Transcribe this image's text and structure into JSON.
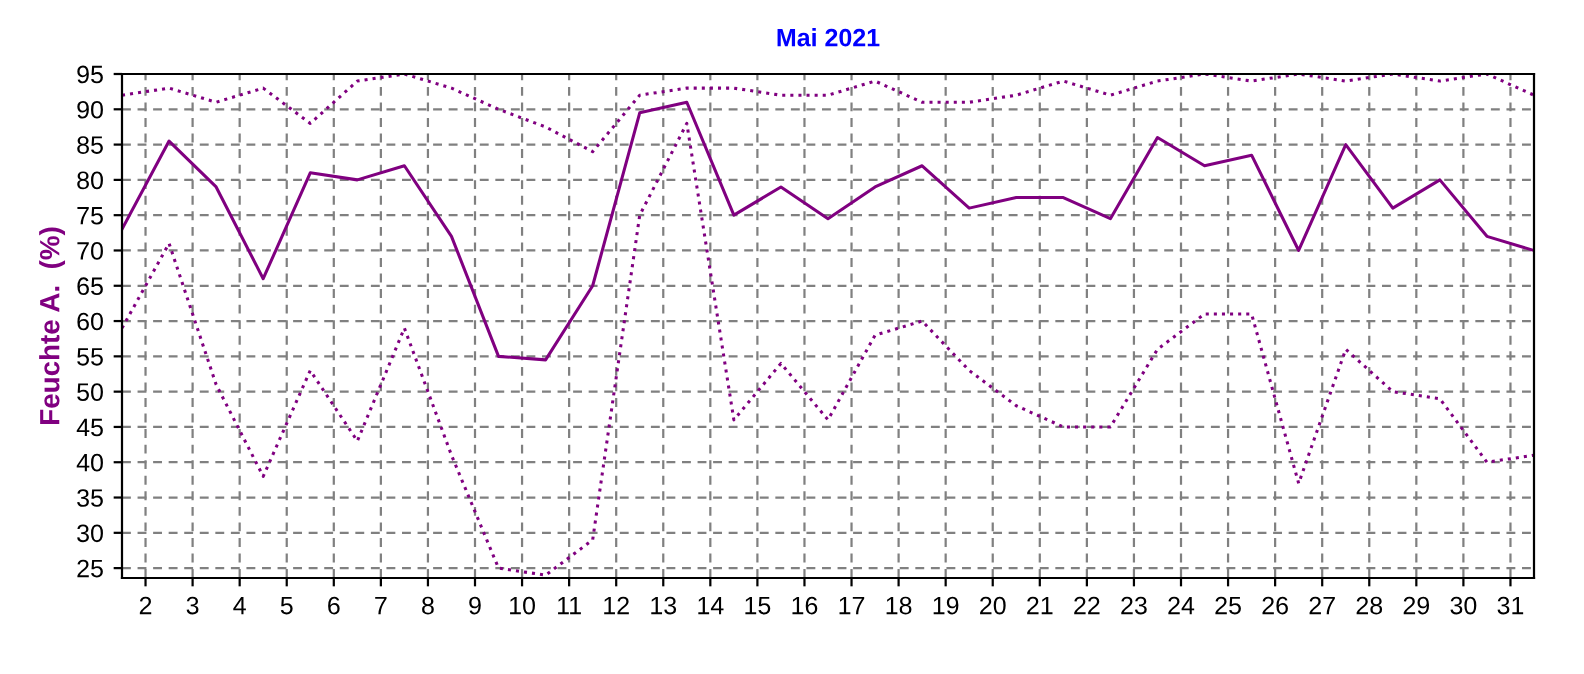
{
  "chart_data": {
    "type": "line",
    "title": "Mai 2021",
    "ylabel": "Feuchte A.  (%)",
    "x": [
      1.5,
      2.5,
      3.5,
      4.5,
      5.5,
      6.5,
      7.5,
      8.5,
      9.5,
      10.5,
      11.5,
      12.5,
      13.5,
      14.5,
      15.5,
      16.5,
      17.5,
      18.5,
      19.5,
      20.5,
      21.5,
      22.5,
      23.5,
      24.5,
      25.5,
      26.5,
      27.5,
      28.5,
      29.5,
      30.5,
      31.5
    ],
    "series": [
      {
        "color": "#800080",
        "line_style": "dotted",
        "values": [
          92,
          93,
          91,
          93,
          88,
          94,
          95,
          93,
          90,
          87.5,
          84,
          92,
          93,
          93,
          92,
          92,
          94,
          91,
          91,
          92,
          94,
          92,
          94,
          95,
          94,
          95,
          94,
          95,
          94,
          95,
          92
        ]
      },
      {
        "color": "#800080",
        "line_style": "solid",
        "values": [
          73,
          85.5,
          79,
          66,
          81,
          80,
          82,
          72,
          55,
          54.5,
          65,
          89.5,
          91,
          75,
          79,
          74.5,
          79,
          82,
          76,
          77.5,
          77.5,
          74.5,
          86,
          82,
          83.5,
          70,
          85,
          76,
          80,
          72,
          70
        ]
      },
      {
        "color": "#800080",
        "line_style": "dotted",
        "values": [
          59,
          71,
          51,
          38,
          53,
          43,
          59,
          41,
          25,
          24,
          29,
          75,
          88,
          46,
          54,
          46,
          58,
          60,
          53,
          48,
          45,
          45,
          56,
          61,
          61,
          37,
          56,
          50,
          49,
          40,
          41
        ]
      }
    ],
    "xlim": [
      1.5,
      31.5
    ],
    "xticks": [
      2,
      3,
      4,
      5,
      6,
      7,
      8,
      9,
      10,
      11,
      12,
      13,
      14,
      15,
      16,
      17,
      18,
      19,
      20,
      21,
      22,
      23,
      24,
      25,
      26,
      27,
      28,
      29,
      30,
      31
    ],
    "ylim": [
      23.6,
      95
    ],
    "yticks": [
      25,
      30,
      35,
      40,
      45,
      50,
      55,
      60,
      65,
      70,
      75,
      80,
      85,
      90,
      95
    ],
    "grid": true,
    "legend": false,
    "marker": "none"
  }
}
